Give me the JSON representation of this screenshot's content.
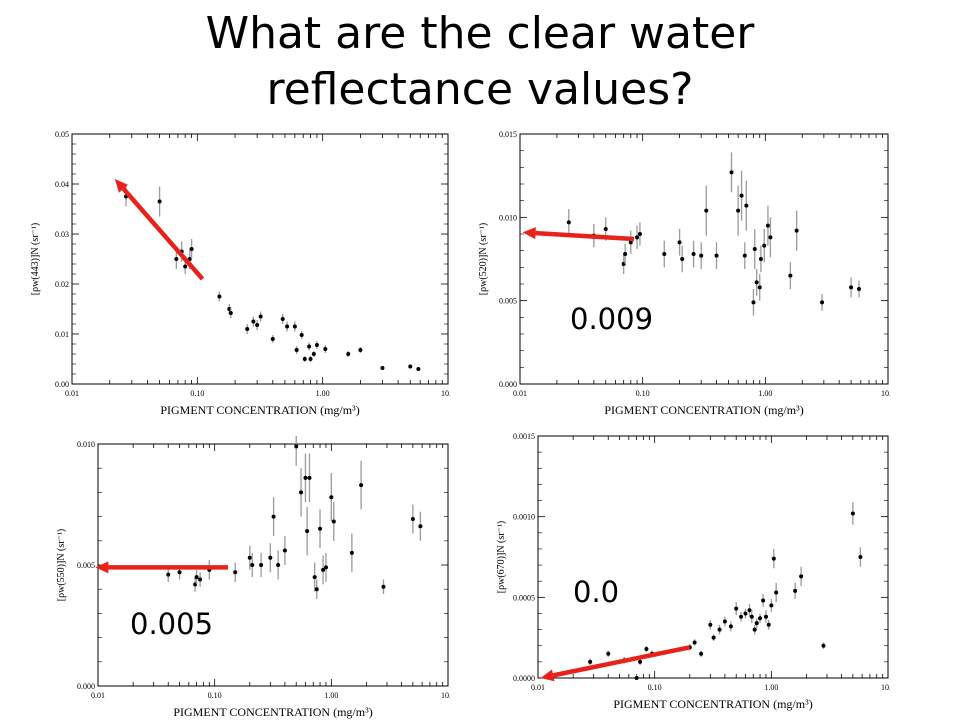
{
  "slide": {
    "title_line1": "What are the clear water",
    "title_line2": "reflectance values?"
  },
  "colors": {
    "arrow": "#e8221b",
    "points": "#000000",
    "error_bars": "#9a9a9a",
    "background": "#ffffff"
  },
  "answers": {
    "p520": "0.009",
    "p550": "0.005",
    "p670": "0.0"
  },
  "chart_data": [
    {
      "type": "scatter",
      "xlabel": "PIGMENT CONCENTRATION (mg/m³)",
      "ylabel": "[ρw(443)]N (sr⁻¹)",
      "xscale": "log",
      "xlim": [
        0.01,
        10.0
      ],
      "ylim": [
        0.0,
        0.05
      ],
      "xticks": [
        "0.01",
        "0.10",
        "1.00",
        "10.0"
      ],
      "yticks": [
        "0.00",
        "0.01",
        "0.02",
        "0.03",
        "0.04",
        "0.05"
      ],
      "points": [
        {
          "x": 0.027,
          "y": 0.0375,
          "e": 0.002
        },
        {
          "x": 0.05,
          "y": 0.0365,
          "e": 0.003
        },
        {
          "x": 0.068,
          "y": 0.025,
          "e": 0.002
        },
        {
          "x": 0.075,
          "y": 0.0265,
          "e": 0.002
        },
        {
          "x": 0.08,
          "y": 0.0235,
          "e": 0.0015
        },
        {
          "x": 0.087,
          "y": 0.025,
          "e": 0.002
        },
        {
          "x": 0.09,
          "y": 0.027,
          "e": 0.002
        },
        {
          "x": 0.15,
          "y": 0.0175,
          "e": 0.001
        },
        {
          "x": 0.18,
          "y": 0.015,
          "e": 0.001
        },
        {
          "x": 0.185,
          "y": 0.0142,
          "e": 0.001
        },
        {
          "x": 0.25,
          "y": 0.011,
          "e": 0.001
        },
        {
          "x": 0.28,
          "y": 0.0125,
          "e": 0.001
        },
        {
          "x": 0.3,
          "y": 0.0118,
          "e": 0.001
        },
        {
          "x": 0.32,
          "y": 0.0135,
          "e": 0.001
        },
        {
          "x": 0.4,
          "y": 0.009,
          "e": 0.0008
        },
        {
          "x": 0.48,
          "y": 0.013,
          "e": 0.001
        },
        {
          "x": 0.52,
          "y": 0.0115,
          "e": 0.001
        },
        {
          "x": 0.6,
          "y": 0.0115,
          "e": 0.001
        },
        {
          "x": 0.62,
          "y": 0.0068,
          "e": 0.0008
        },
        {
          "x": 0.68,
          "y": 0.0098,
          "e": 0.0008
        },
        {
          "x": 0.72,
          "y": 0.005,
          "e": 0.0006
        },
        {
          "x": 0.78,
          "y": 0.0075,
          "e": 0.0008
        },
        {
          "x": 0.8,
          "y": 0.005,
          "e": 0.0006
        },
        {
          "x": 0.85,
          "y": 0.006,
          "e": 0.0006
        },
        {
          "x": 0.9,
          "y": 0.0078,
          "e": 0.0008
        },
        {
          "x": 1.05,
          "y": 0.007,
          "e": 0.0008
        },
        {
          "x": 1.6,
          "y": 0.006,
          "e": 0.0006
        },
        {
          "x": 2.0,
          "y": 0.0068,
          "e": 0.0006
        },
        {
          "x": 3.0,
          "y": 0.0032,
          "e": 0.0004
        },
        {
          "x": 5.0,
          "y": 0.0035,
          "e": 0.0004
        },
        {
          "x": 5.8,
          "y": 0.003,
          "e": 0.0004
        }
      ],
      "arrow": {
        "from": [
          0.11,
          0.021
        ],
        "to": [
          0.022,
          0.041
        ]
      }
    },
    {
      "type": "scatter",
      "xlabel": "PIGMENT CONCENTRATION (mg/m³)",
      "ylabel": "[ρw(520)]N (sr⁻¹)",
      "xscale": "log",
      "xlim": [
        0.01,
        10.0
      ],
      "ylim": [
        0.0,
        0.015
      ],
      "xticks": [
        "0.01",
        "0.10",
        "1.00",
        "10.0"
      ],
      "yticks": [
        "0.000",
        "0.005",
        "0.010",
        "0.015"
      ],
      "points": [
        {
          "x": 0.025,
          "y": 0.0097,
          "e": 0.0008
        },
        {
          "x": 0.04,
          "y": 0.0089,
          "e": 0.0007
        },
        {
          "x": 0.05,
          "y": 0.0093,
          "e": 0.0007
        },
        {
          "x": 0.07,
          "y": 0.0072,
          "e": 0.0006
        },
        {
          "x": 0.072,
          "y": 0.0078,
          "e": 0.0006
        },
        {
          "x": 0.08,
          "y": 0.0085,
          "e": 0.0007
        },
        {
          "x": 0.09,
          "y": 0.0088,
          "e": 0.0007
        },
        {
          "x": 0.095,
          "y": 0.009,
          "e": 0.0007
        },
        {
          "x": 0.15,
          "y": 0.0078,
          "e": 0.0008
        },
        {
          "x": 0.2,
          "y": 0.0085,
          "e": 0.0008
        },
        {
          "x": 0.21,
          "y": 0.0075,
          "e": 0.0008
        },
        {
          "x": 0.26,
          "y": 0.0078,
          "e": 0.0008
        },
        {
          "x": 0.3,
          "y": 0.0077,
          "e": 0.0008
        },
        {
          "x": 0.33,
          "y": 0.0104,
          "e": 0.0015
        },
        {
          "x": 0.4,
          "y": 0.0077,
          "e": 0.0008
        },
        {
          "x": 0.53,
          "y": 0.0127,
          "e": 0.0012
        },
        {
          "x": 0.6,
          "y": 0.0104,
          "e": 0.0015
        },
        {
          "x": 0.64,
          "y": 0.0113,
          "e": 0.0015
        },
        {
          "x": 0.68,
          "y": 0.0077,
          "e": 0.0008
        },
        {
          "x": 0.7,
          "y": 0.0107,
          "e": 0.0015
        },
        {
          "x": 0.8,
          "y": 0.0049,
          "e": 0.0008
        },
        {
          "x": 0.82,
          "y": 0.0081,
          "e": 0.0012
        },
        {
          "x": 0.85,
          "y": 0.0061,
          "e": 0.0008
        },
        {
          "x": 0.9,
          "y": 0.0058,
          "e": 0.0008
        },
        {
          "x": 0.92,
          "y": 0.0075,
          "e": 0.0008
        },
        {
          "x": 0.98,
          "y": 0.0083,
          "e": 0.001
        },
        {
          "x": 1.05,
          "y": 0.0095,
          "e": 0.0012
        },
        {
          "x": 1.1,
          "y": 0.0088,
          "e": 0.0012
        },
        {
          "x": 1.6,
          "y": 0.0065,
          "e": 0.0008
        },
        {
          "x": 1.8,
          "y": 0.0092,
          "e": 0.0012
        },
        {
          "x": 2.9,
          "y": 0.0049,
          "e": 0.0005
        },
        {
          "x": 5.0,
          "y": 0.0058,
          "e": 0.0006
        },
        {
          "x": 5.8,
          "y": 0.0057,
          "e": 0.0005
        }
      ],
      "arrow": {
        "from": [
          0.085,
          0.0087
        ],
        "to": [
          0.0105,
          0.0091
        ]
      }
    },
    {
      "type": "scatter",
      "xlabel": "PIGMENT CONCENTRATION (mg/m³)",
      "ylabel": "[ρw(550)]N (sr⁻¹)",
      "xscale": "log",
      "xlim": [
        0.01,
        10.0
      ],
      "ylim": [
        0.0,
        0.01
      ],
      "xticks": [
        "0.01",
        "0.10",
        "1.00",
        "10.0"
      ],
      "yticks": [
        "0.000",
        "0.005",
        "0.010"
      ],
      "points": [
        {
          "x": 0.04,
          "y": 0.0046,
          "e": 0.0003
        },
        {
          "x": 0.05,
          "y": 0.0047,
          "e": 0.0003
        },
        {
          "x": 0.068,
          "y": 0.0042,
          "e": 0.0003
        },
        {
          "x": 0.07,
          "y": 0.0045,
          "e": 0.0003
        },
        {
          "x": 0.075,
          "y": 0.0044,
          "e": 0.0003
        },
        {
          "x": 0.09,
          "y": 0.0048,
          "e": 0.0004
        },
        {
          "x": 0.15,
          "y": 0.0047,
          "e": 0.0004
        },
        {
          "x": 0.2,
          "y": 0.0053,
          "e": 0.0005
        },
        {
          "x": 0.21,
          "y": 0.005,
          "e": 0.0005
        },
        {
          "x": 0.25,
          "y": 0.005,
          "e": 0.0005
        },
        {
          "x": 0.3,
          "y": 0.0053,
          "e": 0.0006
        },
        {
          "x": 0.32,
          "y": 0.007,
          "e": 0.0008
        },
        {
          "x": 0.35,
          "y": 0.005,
          "e": 0.0006
        },
        {
          "x": 0.4,
          "y": 0.0056,
          "e": 0.0006
        },
        {
          "x": 0.5,
          "y": 0.0099,
          "e": 0.0008
        },
        {
          "x": 0.55,
          "y": 0.008,
          "e": 0.001
        },
        {
          "x": 0.6,
          "y": 0.0086,
          "e": 0.001
        },
        {
          "x": 0.62,
          "y": 0.0064,
          "e": 0.001
        },
        {
          "x": 0.65,
          "y": 0.0086,
          "e": 0.001
        },
        {
          "x": 0.72,
          "y": 0.0045,
          "e": 0.0006
        },
        {
          "x": 0.75,
          "y": 0.004,
          "e": 0.0004
        },
        {
          "x": 0.8,
          "y": 0.0065,
          "e": 0.0008
        },
        {
          "x": 0.85,
          "y": 0.0048,
          "e": 0.0006
        },
        {
          "x": 0.9,
          "y": 0.0049,
          "e": 0.0006
        },
        {
          "x": 1.0,
          "y": 0.0078,
          "e": 0.001
        },
        {
          "x": 1.05,
          "y": 0.0068,
          "e": 0.0008
        },
        {
          "x": 1.5,
          "y": 0.0055,
          "e": 0.0008
        },
        {
          "x": 1.8,
          "y": 0.0083,
          "e": 0.001
        },
        {
          "x": 2.8,
          "y": 0.0041,
          "e": 0.0003
        },
        {
          "x": 5.0,
          "y": 0.0069,
          "e": 0.0006
        },
        {
          "x": 5.8,
          "y": 0.0066,
          "e": 0.0006
        }
      ],
      "arrow": {
        "from": [
          0.13,
          0.0049
        ],
        "to": [
          0.0095,
          0.0049
        ]
      }
    },
    {
      "type": "scatter",
      "xlabel": "PIGMENT CONCENTRATION (mg/m³)",
      "ylabel": "[ρw(670)]N (sr⁻¹)",
      "xscale": "log",
      "xlim": [
        0.01,
        10.0
      ],
      "ylim": [
        0.0,
        0.0015
      ],
      "xticks": [
        "0.01",
        "0.10",
        "1.00",
        "10.0"
      ],
      "yticks": [
        "0.0000",
        "0.0005",
        "0.0010",
        "0.0015"
      ],
      "points": [
        {
          "x": 0.028,
          "y": 0.0001,
          "e": 2e-05
        },
        {
          "x": 0.04,
          "y": 0.00015,
          "e": 2e-05
        },
        {
          "x": 0.055,
          "y": 0.00011,
          "e": 2e-05
        },
        {
          "x": 0.07,
          "y": 0.0,
          "e": 2e-05
        },
        {
          "x": 0.075,
          "y": 0.0001,
          "e": 2e-05
        },
        {
          "x": 0.085,
          "y": 0.00018,
          "e": 2e-05
        },
        {
          "x": 0.095,
          "y": 0.00015,
          "e": 2e-05
        },
        {
          "x": 0.2,
          "y": 0.00019,
          "e": 2e-05
        },
        {
          "x": 0.22,
          "y": 0.00022,
          "e": 2e-05
        },
        {
          "x": 0.25,
          "y": 0.00015,
          "e": 2e-05
        },
        {
          "x": 0.3,
          "y": 0.00033,
          "e": 3e-05
        },
        {
          "x": 0.32,
          "y": 0.00025,
          "e": 2e-05
        },
        {
          "x": 0.36,
          "y": 0.0003,
          "e": 3e-05
        },
        {
          "x": 0.4,
          "y": 0.00035,
          "e": 3e-05
        },
        {
          "x": 0.45,
          "y": 0.00032,
          "e": 3e-05
        },
        {
          "x": 0.5,
          "y": 0.00043,
          "e": 4e-05
        },
        {
          "x": 0.55,
          "y": 0.00038,
          "e": 3e-05
        },
        {
          "x": 0.6,
          "y": 0.0004,
          "e": 3e-05
        },
        {
          "x": 0.65,
          "y": 0.00042,
          "e": 4e-05
        },
        {
          "x": 0.68,
          "y": 0.00038,
          "e": 4e-05
        },
        {
          "x": 0.72,
          "y": 0.0003,
          "e": 3e-05
        },
        {
          "x": 0.75,
          "y": 0.00034,
          "e": 3e-05
        },
        {
          "x": 0.8,
          "y": 0.00037,
          "e": 3e-05
        },
        {
          "x": 0.85,
          "y": 0.00048,
          "e": 4e-05
        },
        {
          "x": 0.9,
          "y": 0.00038,
          "e": 4e-05
        },
        {
          "x": 0.95,
          "y": 0.00033,
          "e": 3e-05
        },
        {
          "x": 1.0,
          "y": 0.00045,
          "e": 4e-05
        },
        {
          "x": 1.05,
          "y": 0.00074,
          "e": 6e-05
        },
        {
          "x": 1.1,
          "y": 0.00053,
          "e": 6e-05
        },
        {
          "x": 1.6,
          "y": 0.00054,
          "e": 5e-05
        },
        {
          "x": 1.8,
          "y": 0.00063,
          "e": 6e-05
        },
        {
          "x": 2.8,
          "y": 0.0002,
          "e": 2e-05
        },
        {
          "x": 5.0,
          "y": 0.00102,
          "e": 7e-05
        },
        {
          "x": 5.8,
          "y": 0.00075,
          "e": 6e-05
        }
      ],
      "arrow": {
        "from": [
          0.2,
          0.00019
        ],
        "to": [
          0.0105,
          0.0
        ]
      }
    }
  ]
}
